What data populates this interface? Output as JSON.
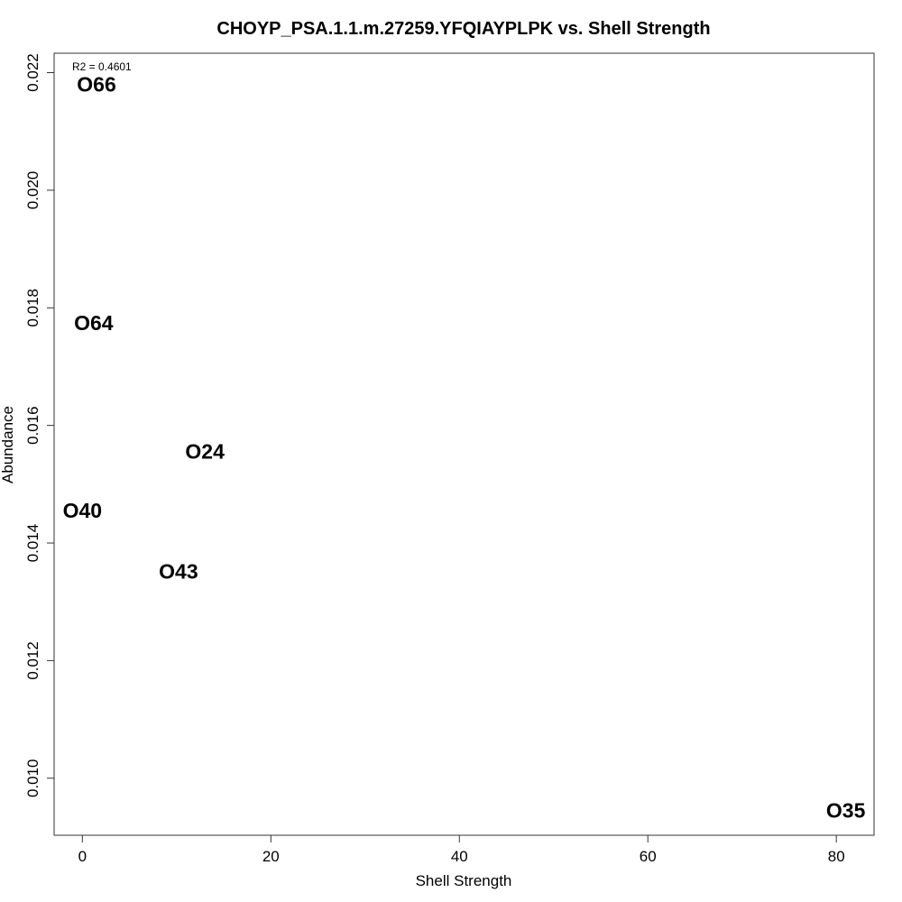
{
  "chart_data": {
    "type": "scatter",
    "title": "CHOYP_PSA.1.1.m.27259.YFQIAYPLPK vs. Shell Strength",
    "xlabel": "Shell Strength",
    "ylabel": "Abundance",
    "annotation": "R2 = 0.4601",
    "xlim": [
      -3,
      84
    ],
    "ylim": [
      0.00903,
      0.02233
    ],
    "xticks": [
      0,
      20,
      40,
      60,
      80
    ],
    "yticks": [
      0.01,
      0.012,
      0.014,
      0.016,
      0.018,
      0.02,
      0.022
    ],
    "ytick_labels": [
      "0.010",
      "0.012",
      "0.014",
      "0.016",
      "0.018",
      "0.020",
      "0.022"
    ],
    "points": [
      {
        "label": "O66",
        "x": 1.5,
        "y": 0.0218
      },
      {
        "label": "O64",
        "x": 1.2,
        "y": 0.01774
      },
      {
        "label": "O24",
        "x": 13.0,
        "y": 0.01556
      },
      {
        "label": "O40",
        "x": 0.0,
        "y": 0.01455
      },
      {
        "label": "O43",
        "x": 10.2,
        "y": 0.01352
      },
      {
        "label": "O35",
        "x": 81.0,
        "y": 0.00945
      }
    ],
    "grid": false,
    "legend": "none"
  }
}
